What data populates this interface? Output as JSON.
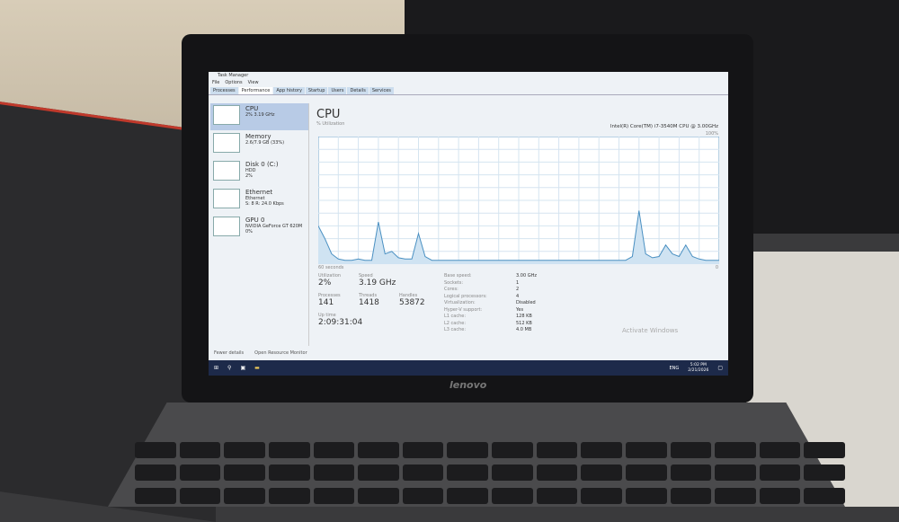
{
  "window": {
    "title": "Task Manager",
    "menu": [
      "File",
      "Options",
      "View"
    ],
    "tabs": [
      "Processes",
      "Performance",
      "App history",
      "Startup",
      "Users",
      "Details",
      "Services"
    ],
    "active_tab": "Performance"
  },
  "sidebar": [
    {
      "name": "CPU",
      "line1": "2% 3.19 GHz",
      "line2": ""
    },
    {
      "name": "Memory",
      "line1": "2.6/7.9 GB (33%)",
      "line2": ""
    },
    {
      "name": "Disk 0 (C:)",
      "line1": "HDD",
      "line2": "2%"
    },
    {
      "name": "Ethernet",
      "line1": "Ethernet",
      "line2": "S: 8 R: 24.0 Kbps"
    },
    {
      "name": "GPU 0",
      "line1": "NVIDIA GeForce GT 620M",
      "line2": "0%"
    }
  ],
  "main": {
    "title": "CPU",
    "model": "Intel(R) Core(TM) i7-3540M CPU @ 3.00GHz",
    "ylabel": "% Utilization",
    "ymax": "100%",
    "xlabel": "60 seconds",
    "xmin": "0",
    "cpu_history": [
      30,
      20,
      8,
      4,
      3,
      3,
      4,
      3,
      3,
      33,
      8,
      10,
      5,
      4,
      4,
      24,
      6,
      3,
      3,
      3,
      3,
      3,
      3,
      3,
      3,
      3,
      3,
      3,
      3,
      3,
      3,
      3,
      3,
      3,
      3,
      3,
      3,
      3,
      3,
      3,
      3,
      3,
      3,
      3,
      3,
      3,
      3,
      6,
      42,
      8,
      5,
      6,
      15,
      8,
      6,
      15,
      6,
      4,
      3,
      3,
      3
    ],
    "stats": [
      {
        "label": "Utilization",
        "value": "2%"
      },
      {
        "label": "Speed",
        "value": "3.19 GHz"
      },
      {
        "label": "Processes",
        "value": "141"
      },
      {
        "label": "Threads",
        "value": "1418"
      },
      {
        "label": "Handles",
        "value": "53872"
      },
      {
        "label": "Up time",
        "value": "2:09:31:04"
      }
    ],
    "specs": [
      [
        "Base speed:",
        "3.00 GHz"
      ],
      [
        "Sockets:",
        "1"
      ],
      [
        "Cores:",
        "2"
      ],
      [
        "Logical processors:",
        "4"
      ],
      [
        "Virtualization:",
        "Disabled"
      ],
      [
        "Hyper-V support:",
        "Yes"
      ],
      [
        "L1 cache:",
        "128 KB"
      ],
      [
        "L2 cache:",
        "512 KB"
      ],
      [
        "L3 cache:",
        "4.0 MB"
      ]
    ]
  },
  "footer": {
    "fewer": "Fewer details",
    "monitor": "Open Resource Monitor"
  },
  "watermark": "Activate Windows",
  "taskbar": {
    "lang": "ENG",
    "time": "5:02 PM",
    "date": "2/21/2026"
  },
  "laptop_brand": "lenovo"
}
